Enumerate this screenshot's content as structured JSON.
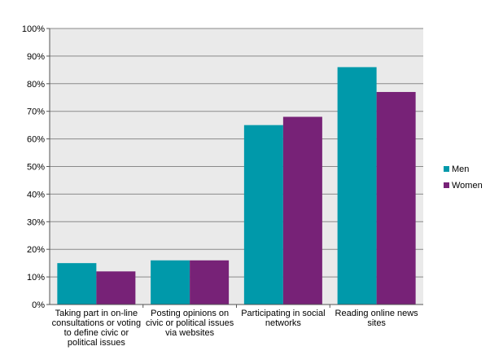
{
  "chart_data": {
    "type": "bar",
    "categories": [
      [
        "Taking part in on-line",
        "consultations or voting",
        "to define civic or",
        "political issues"
      ],
      [
        "Posting opinions on",
        "civic or political issues",
        "via websites"
      ],
      [
        "Participating in social",
        "networks"
      ],
      [
        "Reading online news",
        "sites"
      ]
    ],
    "series": [
      {
        "name": "Men",
        "color": "#0099AA",
        "values": [
          15,
          16,
          65,
          86
        ]
      },
      {
        "name": "Women",
        "color": "#772277",
        "values": [
          12,
          16,
          68,
          77
        ]
      }
    ],
    "ylim": [
      0,
      100
    ],
    "yticks": [
      "0%",
      "10%",
      "20%",
      "30%",
      "40%",
      "50%",
      "60%",
      "70%",
      "80%",
      "90%",
      "100%"
    ],
    "grid": true,
    "legend_position": "right",
    "plot_background": "#EAEAEA"
  }
}
